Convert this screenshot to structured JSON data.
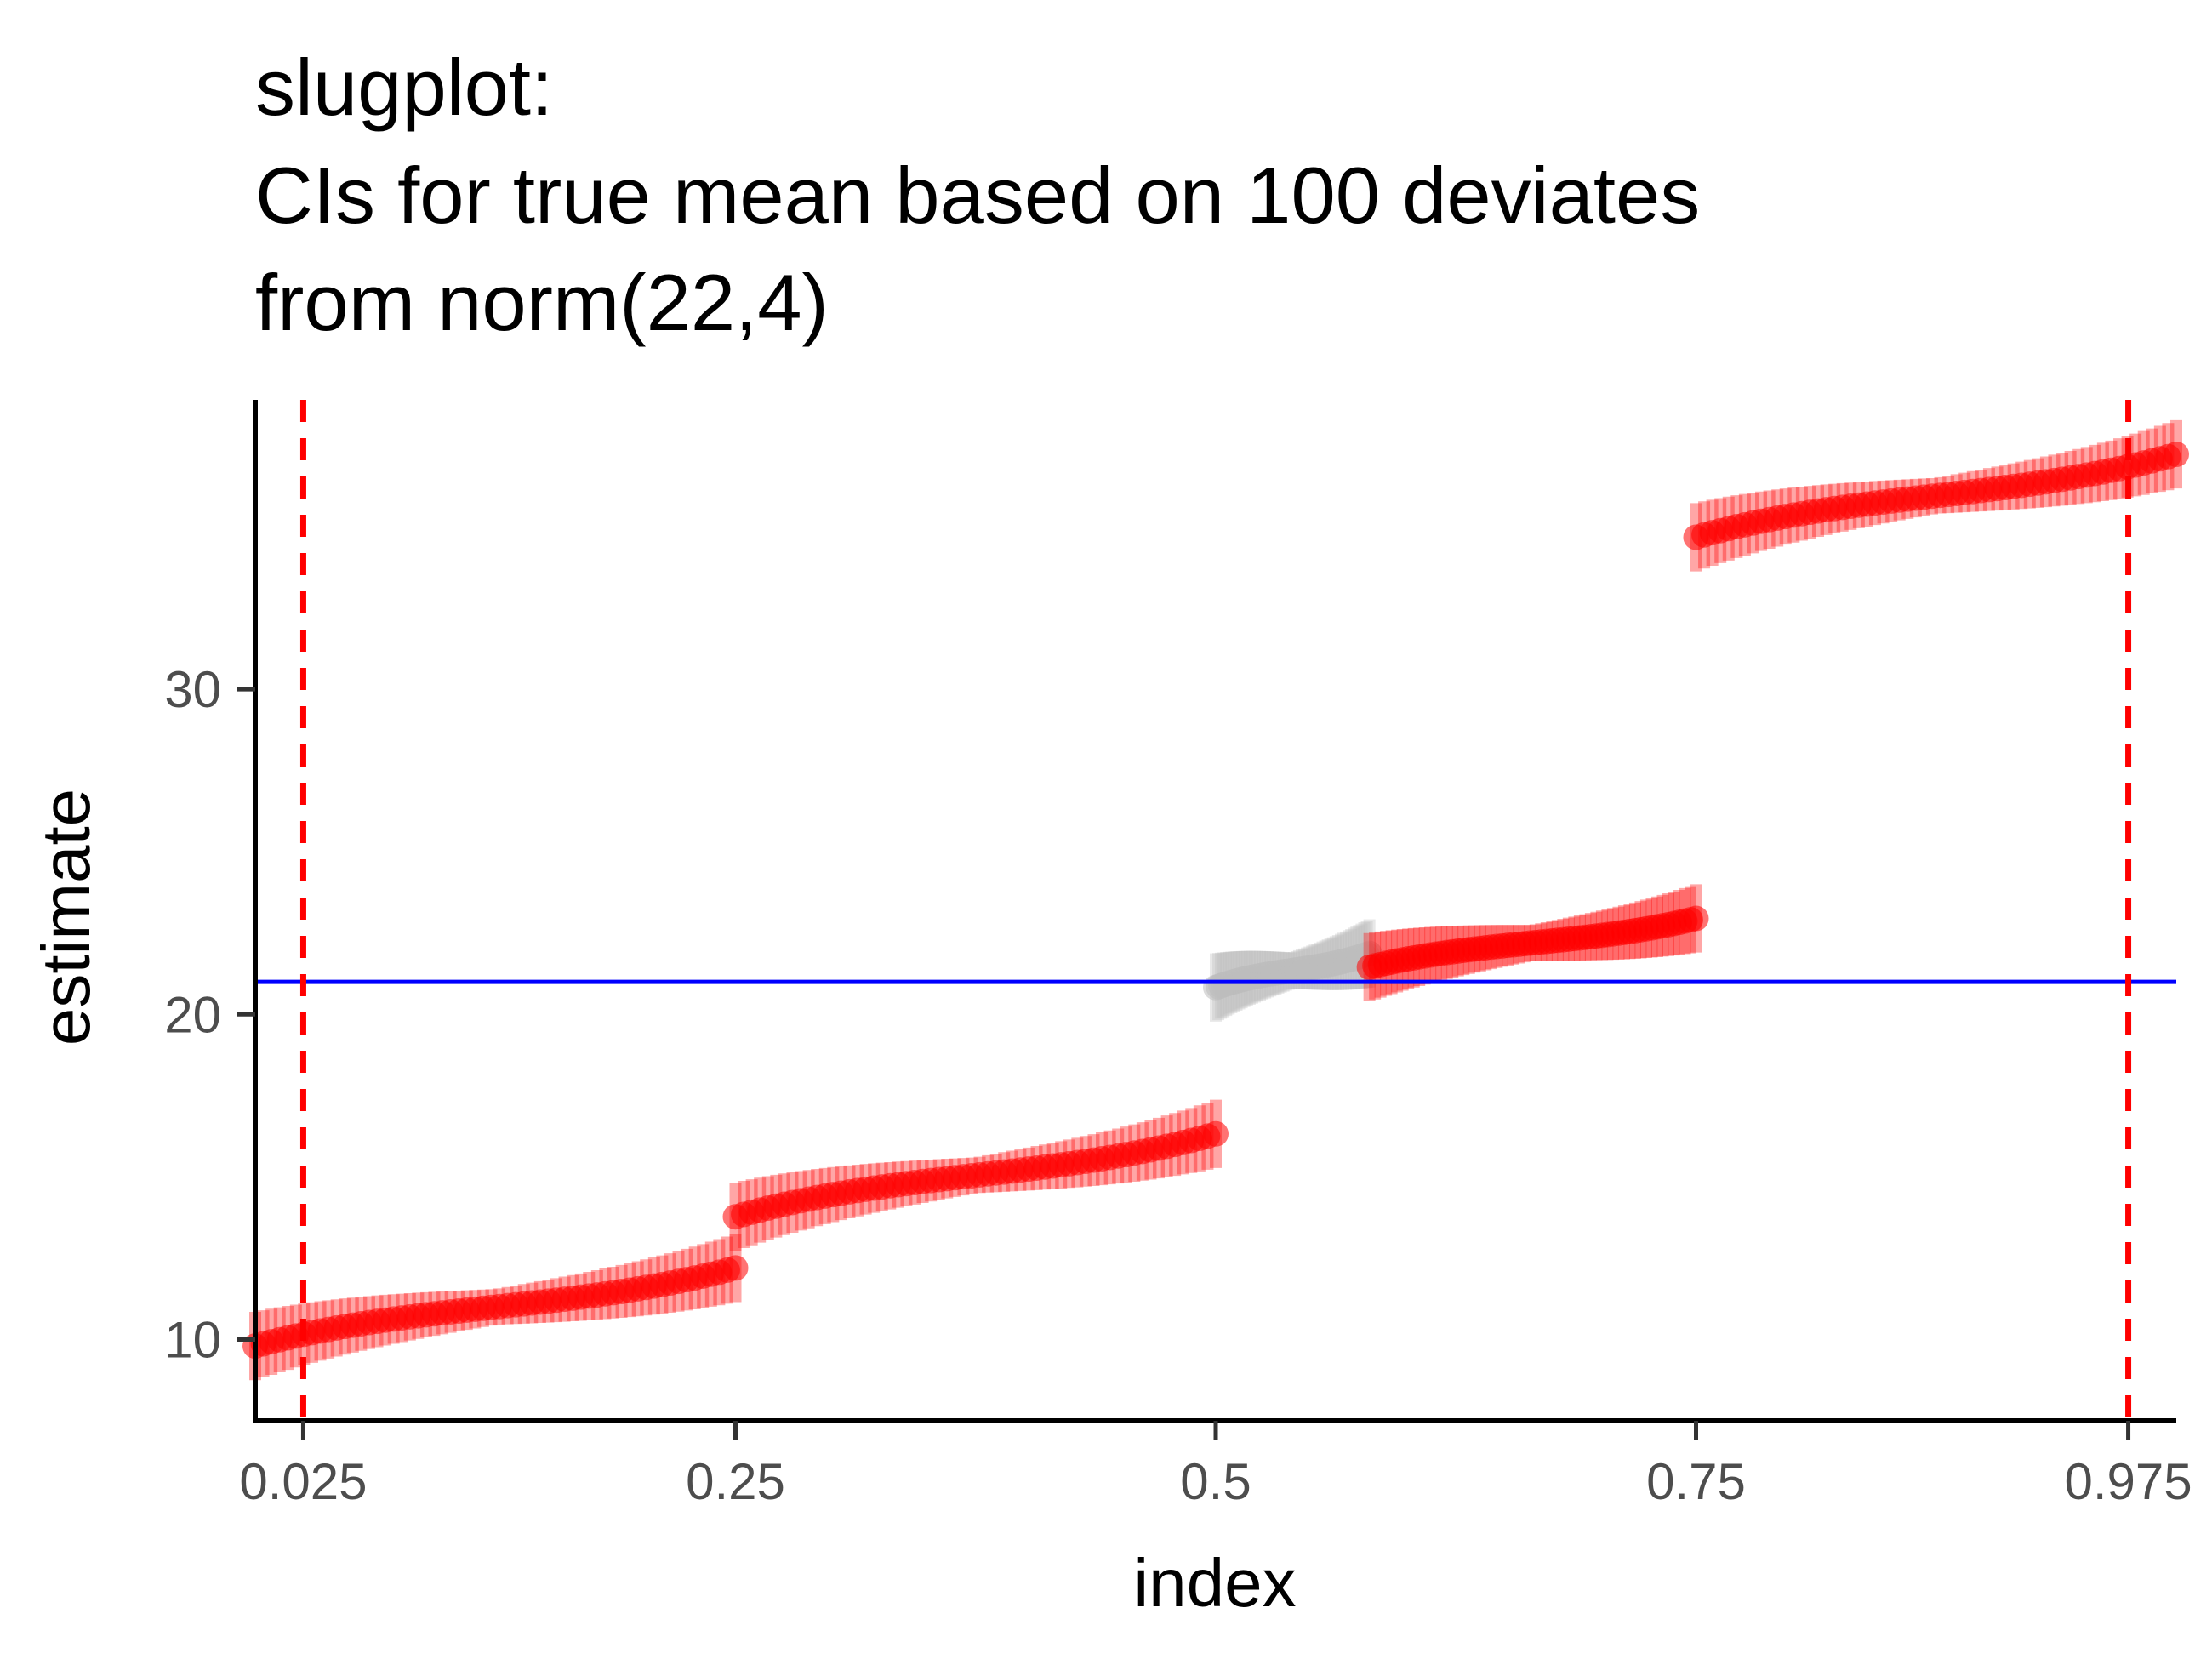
{
  "chart_data": {
    "type": "scatter",
    "title_lines": [
      "slugplot:",
      "CIs for true mean  based on 100 deviates",
      "from norm(22,4)"
    ],
    "xlabel": "index",
    "ylabel": "estimate",
    "x_ticks": [
      {
        "value": 0.025,
        "label": "0.025"
      },
      {
        "value": 0.25,
        "label": "0.25"
      },
      {
        "value": 0.5,
        "label": "0.5"
      },
      {
        "value": 0.75,
        "label": "0.75"
      },
      {
        "value": 0.975,
        "label": "0.975"
      }
    ],
    "y_ticks": [
      {
        "value": 10,
        "label": "10"
      },
      {
        "value": 20,
        "label": "20"
      },
      {
        "value": 30,
        "label": "30"
      }
    ],
    "xlim": [
      0.0,
      1.0
    ],
    "ylim": [
      7.5,
      38.9
    ],
    "reference_hline": {
      "y": 21,
      "color": "#0000ff"
    },
    "reference_vlines": [
      {
        "x": 0.025,
        "color": "#ff0000",
        "style": "dashed"
      },
      {
        "x": 0.975,
        "color": "#ff0000",
        "style": "dashed"
      }
    ],
    "grid": false,
    "legend": "none",
    "colors": {
      "covers": "#ff0000",
      "misses": "#bebebe",
      "reference_line": "#0000ff"
    },
    "segments": [
      {
        "x_start": 0.0,
        "x_end": 0.25,
        "y_start": 10.2,
        "y_end": 11.8,
        "color_key": "covers"
      },
      {
        "x_start": 0.25,
        "x_end": 0.5,
        "y_start": 14.2,
        "y_end": 15.9,
        "color_key": "covers"
      },
      {
        "x_start": 0.5,
        "x_end": 0.58,
        "y_start": 21.0,
        "y_end": 21.7,
        "color_key": "misses"
      },
      {
        "x_start": 0.58,
        "x_end": 0.75,
        "y_start": 21.7,
        "y_end": 22.7,
        "color_key": "covers"
      },
      {
        "x_start": 0.75,
        "x_end": 1.0,
        "y_start": 35.1,
        "y_end": 36.8,
        "color_key": "covers"
      }
    ]
  }
}
